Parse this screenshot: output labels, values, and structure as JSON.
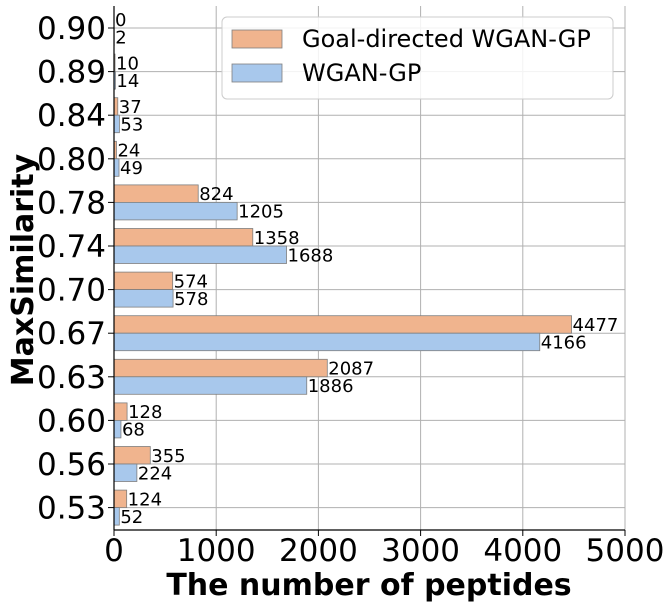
{
  "chart_data": {
    "type": "bar",
    "orientation": "horizontal",
    "categories": [
      "0.90",
      "0.89",
      "0.84",
      "0.80",
      "0.78",
      "0.74",
      "0.70",
      "0.67",
      "0.63",
      "0.60",
      "0.56",
      "0.53"
    ],
    "series": [
      {
        "name": "Goal-directed WGAN-GP",
        "color": "#f0b48e",
        "values": [
          0,
          10,
          37,
          24,
          824,
          1358,
          574,
          4477,
          2087,
          128,
          355,
          124
        ]
      },
      {
        "name": "WGAN-GP",
        "color": "#a8c8ec",
        "values": [
          2,
          14,
          53,
          49,
          1205,
          1688,
          578,
          4166,
          1886,
          68,
          224,
          52
        ]
      }
    ],
    "xlabel": "The number of peptides",
    "ylabel": "MaxSimilarity",
    "xlim": [
      0,
      5000
    ],
    "xticks": [
      "0",
      "1000",
      "2000",
      "3000",
      "4000",
      "5000"
    ],
    "grid": true,
    "legend_position": "top-right"
  }
}
